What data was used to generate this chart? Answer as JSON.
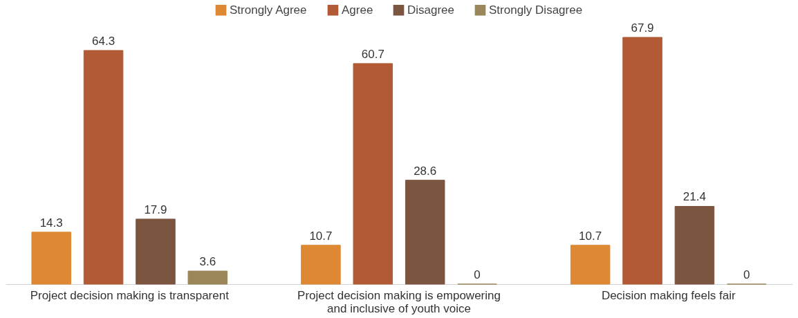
{
  "chart_data": {
    "type": "bar",
    "categories": [
      "Project decision making is transparent",
      "Project decision making is empowering and inclusive of youth voice",
      "Decision making feels fair"
    ],
    "series": [
      {
        "name": "Strongly Agree",
        "color": "#de8834",
        "values": [
          14.3,
          10.7,
          10.7
        ]
      },
      {
        "name": "Agree",
        "color": "#b15a35",
        "values": [
          64.3,
          60.7,
          67.9
        ]
      },
      {
        "name": "Disagree",
        "color": "#7c5540",
        "values": [
          17.9,
          28.6,
          21.4
        ]
      },
      {
        "name": "Strongly Disagree",
        "color": "#9a8659",
        "values": [
          3.6,
          0,
          0
        ]
      }
    ],
    "data_labels": true,
    "legend": "top",
    "grid": false
  }
}
